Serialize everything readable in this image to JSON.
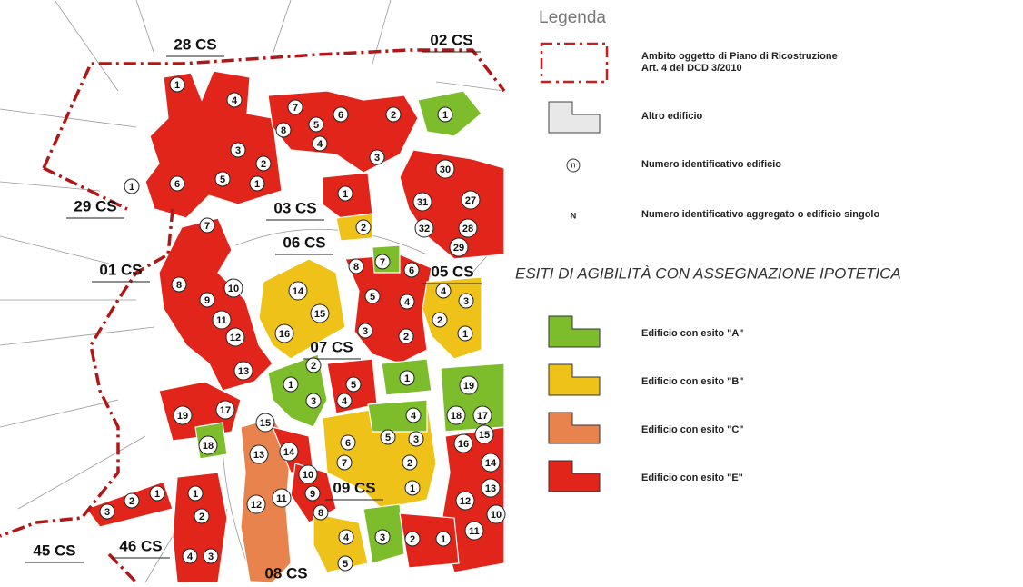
{
  "legend": {
    "title": "Legenda",
    "boundary": [
      "Ambito oggetto di Piano di Ricostruzione",
      "Art. 4 del DCD 3/2010"
    ],
    "other": "Altro edificio",
    "building_symbol": "n",
    "building_text": "Numero identificativo edificio",
    "aggregate_symbol": "N",
    "aggregate_text": "Numero identificativo aggregato o edificio singolo",
    "section_title": "ESITI DI AGIBILITÀ CON ASSEGNAZIONE IPOTETICA",
    "outcomes": [
      {
        "label": "Edificio con esito \"A\"",
        "color": "#7dbd2c"
      },
      {
        "label": "Edificio con esito \"B\"",
        "color": "#efc21a"
      },
      {
        "label": "Edificio con esito \"C\"",
        "color": "#e8834e"
      },
      {
        "label": "Edificio con esito \"E\"",
        "color": "#e1251b"
      }
    ]
  },
  "map": {
    "aggregates": [
      "28 CS",
      "02 CS",
      "29 CS",
      "03 CS",
      "06 CS",
      "01 CS",
      "05 CS",
      "07 CS",
      "09 CS",
      "45 CS",
      "46 CS",
      "08 CS"
    ],
    "buildings": [
      "1",
      "4",
      "7",
      "5",
      "6",
      "8",
      "4",
      "2",
      "1",
      "3",
      "2",
      "5",
      "1",
      "6",
      "1",
      "3",
      "30",
      "1",
      "2",
      "31",
      "27",
      "32",
      "28",
      "29",
      "7",
      "8",
      "7",
      "6",
      "8",
      "10",
      "14",
      "9",
      "5",
      "4",
      "4",
      "3",
      "15",
      "11",
      "2",
      "16",
      "12",
      "3",
      "2",
      "1",
      "2",
      "13",
      "1",
      "5",
      "1",
      "19",
      "3",
      "4",
      "17",
      "19",
      "4",
      "18",
      "17",
      "15",
      "5",
      "3",
      "6",
      "16",
      "15",
      "18",
      "13",
      "14",
      "2",
      "7",
      "14",
      "10",
      "9",
      "1",
      "1",
      "1",
      "2",
      "3",
      "12",
      "13",
      "11",
      "12",
      "8",
      "2",
      "10",
      "11",
      "4",
      "3",
      "2",
      "1",
      "4",
      "3",
      "5"
    ]
  }
}
